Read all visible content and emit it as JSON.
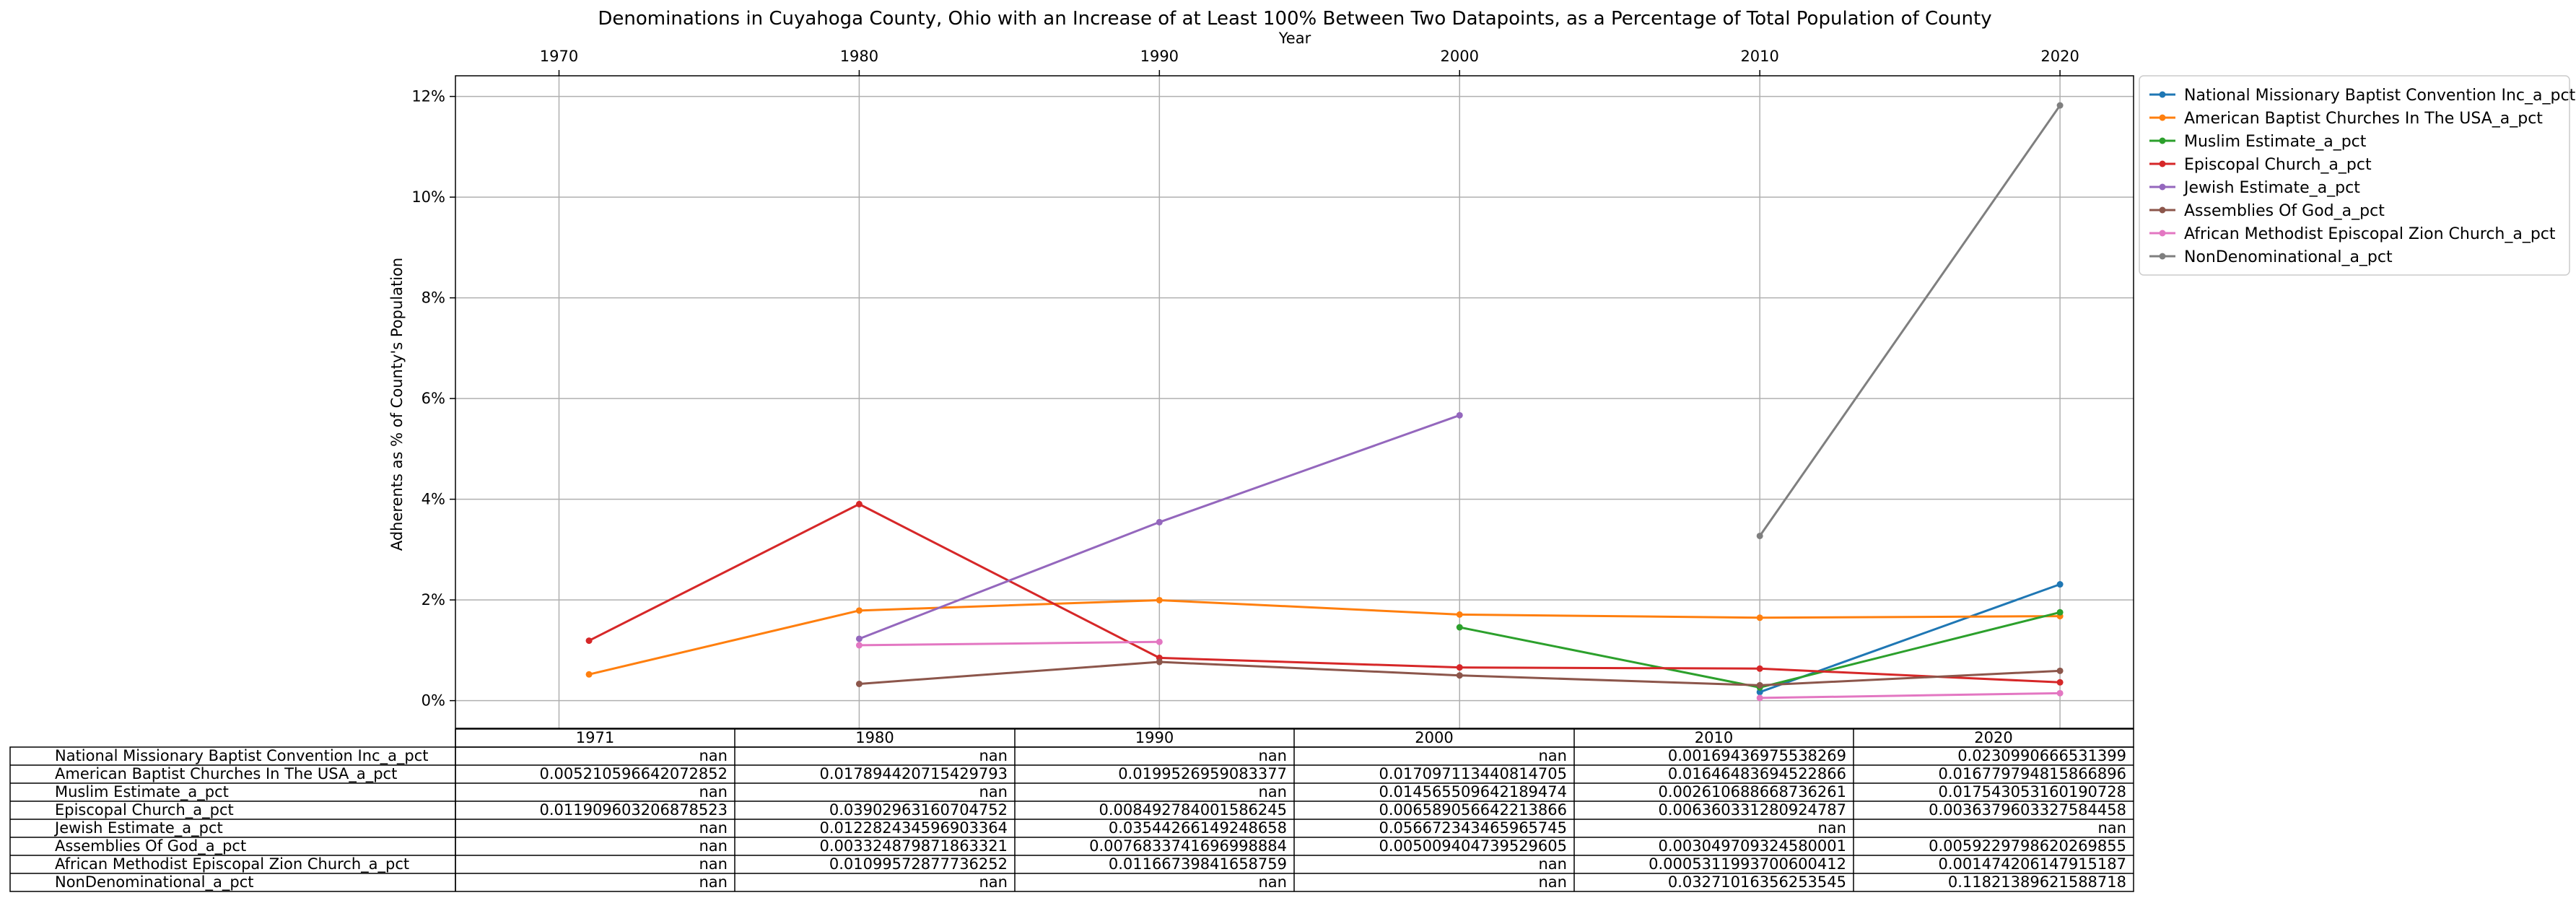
{
  "chart_data": {
    "type": "line",
    "title": "Denominations in Cuyahoga County, Ohio with an Increase of at Least 100% Between Two Datapoints, as a Percentage of Total Population of County",
    "xlabel": "Year",
    "ylabel": "Adherents as % of County's Population",
    "x_ticks": [
      "1970",
      "1980",
      "1990",
      "2000",
      "2010",
      "2020"
    ],
    "y_ticks": [
      "0%",
      "2%",
      "4%",
      "6%",
      "8%",
      "10%",
      "12%"
    ],
    "xlim": [
      1966.55,
      2022.45
    ],
    "ylim": [
      -0.0055,
      0.1241
    ],
    "grid": true,
    "legend_position": "outside-top-right",
    "x": [
      1971,
      1980,
      1990,
      2000,
      2010,
      2020
    ],
    "series": [
      {
        "name": "National Missionary Baptist Convention Inc_a_pct",
        "color": "#1f77b4",
        "values": [
          null,
          null,
          null,
          null,
          0.00169436975538269,
          0.0230990666531399
        ],
        "cells": [
          "nan",
          "nan",
          "nan",
          "nan",
          "0.00169436975538269",
          "0.0230990666531399"
        ]
      },
      {
        "name": "American Baptist Churches In The USA_a_pct",
        "color": "#ff7f0e",
        "values": [
          0.005210596642072852,
          0.017894420715429793,
          0.0199526959083377,
          0.017097113440814705,
          0.01646483694522866,
          0.016779794815866896
        ],
        "cells": [
          "0.005210596642072852",
          "0.017894420715429793",
          "0.0199526959083377",
          "0.017097113440814705",
          "0.01646483694522866",
          "0.016779794815866896"
        ]
      },
      {
        "name": "Muslim Estimate_a_pct",
        "color": "#2ca02c",
        "values": [
          null,
          null,
          null,
          0.014565509642189474,
          0.002610688668736261,
          0.017543053160190728
        ],
        "cells": [
          "nan",
          "nan",
          "nan",
          "0.014565509642189474",
          "0.002610688668736261",
          "0.017543053160190728"
        ]
      },
      {
        "name": "Episcopal Church_a_pct",
        "color": "#d62728",
        "values": [
          0.011909603206878523,
          0.03902963160704752,
          0.008492784001586245,
          0.006589056642213866,
          0.006360331280924787,
          0.0036379603327584458
        ],
        "cells": [
          "0.011909603206878523",
          "0.03902963160704752",
          "0.008492784001586245",
          "0.006589056642213866",
          "0.006360331280924787",
          "0.0036379603327584458"
        ]
      },
      {
        "name": "Jewish Estimate_a_pct",
        "color": "#9467bd",
        "values": [
          null,
          0.012282434596903364,
          0.03544266149248658,
          0.056672343465965745,
          null,
          null
        ],
        "cells": [
          "nan",
          "0.012282434596903364",
          "0.03544266149248658",
          "0.056672343465965745",
          "nan",
          "nan"
        ]
      },
      {
        "name": "Assemblies Of God_a_pct",
        "color": "#8c564b",
        "values": [
          null,
          0.003324879871863321,
          0.0076833741696998884,
          0.005009404739529605,
          0.003049709324580001,
          0.0059229798620269855
        ],
        "cells": [
          "nan",
          "0.003324879871863321",
          "0.0076833741696998884",
          "0.005009404739529605",
          "0.003049709324580001",
          "0.0059229798620269855"
        ]
      },
      {
        "name": "African Methodist Episcopal Zion Church_a_pct",
        "color": "#e377c2",
        "values": [
          null,
          0.01099572877736252,
          0.01166739841658759,
          null,
          0.0005311993700600412,
          0.001474206147915187
        ],
        "cells": [
          "nan",
          "0.01099572877736252",
          "0.01166739841658759",
          "nan",
          "0.0005311993700600412",
          "0.001474206147915187"
        ]
      },
      {
        "name": "NonDenominational_a_pct",
        "color": "#7f7f7f",
        "values": [
          null,
          null,
          null,
          null,
          0.03271016356253545,
          0.11821389621588718
        ],
        "cells": [
          "nan",
          "nan",
          "nan",
          "nan",
          "0.03271016356253545",
          "0.11821389621588718"
        ]
      }
    ]
  }
}
